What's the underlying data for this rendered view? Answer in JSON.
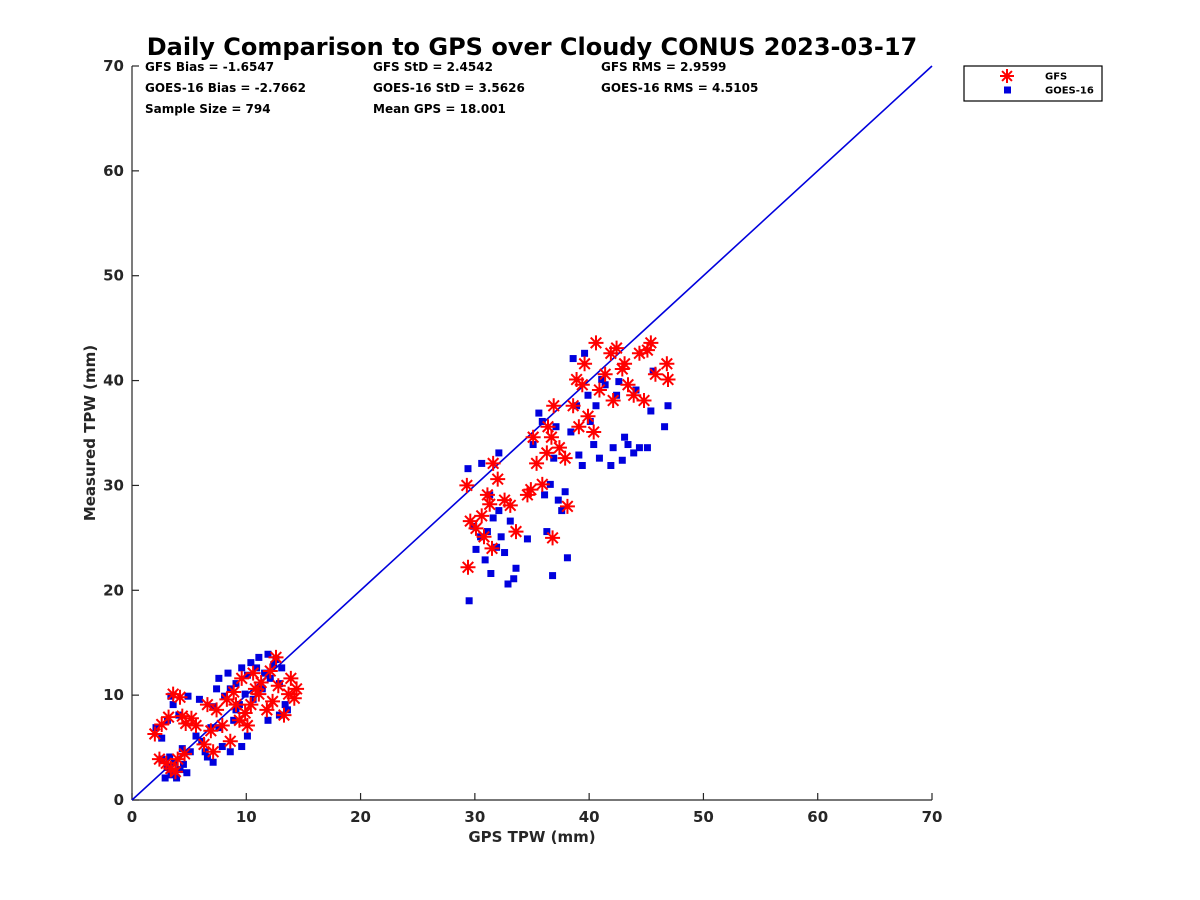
{
  "chart_data": {
    "type": "scatter",
    "title": "Daily Comparison to GPS over Cloudy CONUS 2023-03-17",
    "xlabel": "GPS TPW (mm)",
    "ylabel": "Measured TPW (mm)",
    "xlim": [
      0,
      70
    ],
    "ylim": [
      0,
      70
    ],
    "xticks": [
      "0",
      "10",
      "20",
      "30",
      "40",
      "50",
      "60",
      "70"
    ],
    "yticks": [
      "0",
      "10",
      "20",
      "30",
      "40",
      "50",
      "60",
      "70"
    ],
    "grid": false,
    "legend_position": "outside-top-right",
    "reference_line": {
      "x": [
        0,
        70
      ],
      "y": [
        0,
        70
      ],
      "color": "#0000dd"
    },
    "stats": [
      [
        "GFS Bias = -1.6547",
        "GFS StD = 2.4542",
        "GFS RMS = 2.9599"
      ],
      [
        "GOES-16 Bias = -2.7662",
        "GOES-16 StD = 3.5626",
        "GOES-16 RMS = 4.5105"
      ],
      [
        "Sample Size = 794",
        "Mean GPS = 18.001",
        ""
      ]
    ],
    "series": [
      {
        "name": "GFS",
        "marker": "asterisk",
        "color": "#ff0000",
        "points": [
          [
            2.0,
            6.3
          ],
          [
            2.6,
            7.2
          ],
          [
            3.2,
            7.9
          ],
          [
            3.6,
            10.1
          ],
          [
            4.2,
            9.8
          ],
          [
            4.7,
            7.3
          ],
          [
            5.2,
            7.8
          ],
          [
            4.4,
            8.0
          ],
          [
            2.4,
            3.9
          ],
          [
            3.0,
            3.5
          ],
          [
            3.4,
            3.0
          ],
          [
            4.0,
            3.9
          ],
          [
            4.6,
            4.4
          ],
          [
            3.8,
            2.7
          ],
          [
            6.3,
            5.3
          ],
          [
            6.9,
            6.6
          ],
          [
            7.4,
            8.6
          ],
          [
            7.9,
            7.1
          ],
          [
            8.3,
            9.6
          ],
          [
            8.9,
            10.3
          ],
          [
            9.4,
            7.6
          ],
          [
            9.9,
            8.3
          ],
          [
            10.4,
            9.1
          ],
          [
            10.8,
            10.6
          ],
          [
            11.3,
            11.2
          ],
          [
            11.8,
            8.6
          ],
          [
            12.3,
            9.4
          ],
          [
            12.8,
            10.9
          ],
          [
            13.3,
            8.1
          ],
          [
            13.7,
            10.1
          ],
          [
            14.2,
            9.7
          ],
          [
            12.6,
            13.6
          ],
          [
            13.9,
            11.6
          ],
          [
            12.1,
            12.3
          ],
          [
            10.1,
            7.1
          ],
          [
            8.6,
            5.6
          ],
          [
            7.1,
            4.6
          ],
          [
            9.1,
            9.1
          ],
          [
            11.1,
            10.1
          ],
          [
            6.6,
            9.1
          ],
          [
            10.6,
            12.1
          ],
          [
            14.4,
            10.6
          ],
          [
            5.6,
            7.1
          ],
          [
            9.6,
            11.6
          ],
          [
            29.3,
            30.0
          ],
          [
            29.4,
            22.2
          ],
          [
            29.6,
            26.6
          ],
          [
            30.1,
            25.9
          ],
          [
            30.6,
            27.1
          ],
          [
            31.1,
            29.1
          ],
          [
            31.6,
            32.1
          ],
          [
            32.0,
            30.6
          ],
          [
            31.3,
            28.2
          ],
          [
            30.8,
            25.1
          ],
          [
            31.5,
            24.0
          ],
          [
            32.6,
            28.6
          ],
          [
            33.1,
            28.1
          ],
          [
            33.6,
            25.6
          ],
          [
            34.6,
            29.1
          ],
          [
            34.9,
            29.6
          ],
          [
            35.4,
            32.1
          ],
          [
            35.9,
            30.1
          ],
          [
            36.3,
            33.1
          ],
          [
            36.7,
            34.6
          ],
          [
            36.9,
            37.6
          ],
          [
            36.4,
            35.6
          ],
          [
            37.4,
            33.6
          ],
          [
            37.9,
            32.6
          ],
          [
            38.1,
            28.0
          ],
          [
            36.8,
            25.0
          ],
          [
            35.1,
            34.6
          ],
          [
            38.6,
            37.6
          ],
          [
            38.9,
            40.1
          ],
          [
            39.4,
            39.6
          ],
          [
            39.6,
            41.6
          ],
          [
            39.9,
            36.6
          ],
          [
            40.4,
            35.1
          ],
          [
            40.6,
            43.6
          ],
          [
            40.9,
            39.1
          ],
          [
            41.4,
            40.6
          ],
          [
            41.9,
            42.6
          ],
          [
            42.1,
            38.1
          ],
          [
            42.4,
            43.1
          ],
          [
            42.9,
            41.1
          ],
          [
            43.4,
            39.6
          ],
          [
            43.9,
            38.6
          ],
          [
            44.4,
            42.6
          ],
          [
            44.8,
            38.1
          ],
          [
            45.1,
            42.9
          ],
          [
            45.4,
            43.6
          ],
          [
            45.8,
            40.6
          ],
          [
            46.8,
            41.6
          ],
          [
            46.9,
            40.1
          ],
          [
            43.1,
            41.6
          ],
          [
            39.1,
            35.6
          ]
        ]
      },
      {
        "name": "GOES-16",
        "marker": "square",
        "color": "#0000dd",
        "points": [
          [
            2.1,
            6.9
          ],
          [
            2.6,
            5.9
          ],
          [
            3.1,
            7.6
          ],
          [
            3.6,
            9.1
          ],
          [
            4.1,
            8.1
          ],
          [
            3.4,
            9.9
          ],
          [
            2.9,
            2.1
          ],
          [
            3.1,
            3.1
          ],
          [
            3.4,
            2.4
          ],
          [
            3.7,
            3.6
          ],
          [
            3.9,
            2.1
          ],
          [
            4.2,
            2.9
          ],
          [
            4.5,
            3.4
          ],
          [
            4.8,
            2.6
          ],
          [
            2.6,
            3.9
          ],
          [
            3.3,
            4.1
          ],
          [
            4.4,
            4.9
          ],
          [
            5.1,
            4.6
          ],
          [
            5.6,
            6.1
          ],
          [
            6.1,
            5.6
          ],
          [
            6.6,
            4.1
          ],
          [
            6.9,
            6.9
          ],
          [
            7.1,
            8.9
          ],
          [
            7.4,
            10.6
          ],
          [
            7.6,
            11.6
          ],
          [
            8.1,
            9.9
          ],
          [
            8.4,
            12.1
          ],
          [
            8.6,
            10.6
          ],
          [
            8.9,
            7.6
          ],
          [
            9.1,
            11.1
          ],
          [
            9.4,
            9.1
          ],
          [
            9.6,
            12.6
          ],
          [
            9.9,
            10.1
          ],
          [
            10.1,
            11.9
          ],
          [
            10.4,
            13.1
          ],
          [
            10.6,
            9.6
          ],
          [
            10.9,
            12.6
          ],
          [
            11.1,
            13.6
          ],
          [
            11.4,
            10.6
          ],
          [
            11.6,
            12.1
          ],
          [
            11.9,
            13.9
          ],
          [
            12.1,
            11.6
          ],
          [
            12.4,
            12.9
          ],
          [
            12.6,
            13.4
          ],
          [
            12.9,
            11.1
          ],
          [
            13.1,
            12.6
          ],
          [
            13.4,
            9.1
          ],
          [
            13.6,
            8.6
          ],
          [
            7.9,
            5.1
          ],
          [
            8.6,
            4.6
          ],
          [
            9.6,
            5.1
          ],
          [
            10.1,
            6.1
          ],
          [
            7.1,
            3.6
          ],
          [
            6.4,
            4.6
          ],
          [
            11.9,
            7.6
          ],
          [
            12.9,
            8.1
          ],
          [
            5.9,
            9.6
          ],
          [
            4.9,
            9.9
          ],
          [
            9.1,
            8.6
          ],
          [
            7.6,
            6.9
          ],
          [
            29.4,
            31.6
          ],
          [
            29.5,
            19.0
          ],
          [
            29.9,
            26.1
          ],
          [
            30.1,
            23.9
          ],
          [
            30.5,
            25.1
          ],
          [
            30.6,
            32.1
          ],
          [
            30.9,
            22.9
          ],
          [
            31.1,
            25.6
          ],
          [
            31.3,
            29.1
          ],
          [
            31.4,
            21.6
          ],
          [
            31.6,
            26.9
          ],
          [
            31.9,
            24.1
          ],
          [
            32.1,
            27.6
          ],
          [
            32.1,
            33.1
          ],
          [
            32.3,
            25.1
          ],
          [
            32.6,
            23.6
          ],
          [
            32.9,
            20.6
          ],
          [
            33.1,
            26.6
          ],
          [
            33.4,
            21.1
          ],
          [
            33.6,
            22.1
          ],
          [
            34.6,
            24.9
          ],
          [
            35.1,
            33.9
          ],
          [
            35.6,
            36.9
          ],
          [
            35.9,
            36.1
          ],
          [
            36.1,
            29.1
          ],
          [
            36.3,
            25.6
          ],
          [
            36.6,
            30.1
          ],
          [
            36.8,
            21.4
          ],
          [
            36.9,
            32.6
          ],
          [
            37.1,
            35.6
          ],
          [
            37.3,
            28.6
          ],
          [
            37.6,
            27.6
          ],
          [
            37.9,
            29.4
          ],
          [
            38.1,
            23.1
          ],
          [
            38.4,
            35.1
          ],
          [
            38.6,
            42.1
          ],
          [
            38.9,
            37.6
          ],
          [
            39.1,
            32.9
          ],
          [
            39.4,
            31.9
          ],
          [
            39.6,
            42.6
          ],
          [
            39.9,
            38.6
          ],
          [
            40.1,
            36.1
          ],
          [
            40.4,
            33.9
          ],
          [
            40.6,
            37.6
          ],
          [
            40.9,
            32.6
          ],
          [
            41.1,
            40.1
          ],
          [
            41.4,
            39.6
          ],
          [
            41.9,
            31.9
          ],
          [
            42.1,
            33.6
          ],
          [
            42.4,
            38.6
          ],
          [
            42.6,
            39.9
          ],
          [
            42.9,
            32.4
          ],
          [
            43.1,
            34.6
          ],
          [
            43.4,
            33.9
          ],
          [
            43.9,
            33.1
          ],
          [
            44.4,
            33.6
          ],
          [
            45.1,
            33.6
          ],
          [
            45.4,
            37.1
          ],
          [
            45.6,
            40.9
          ],
          [
            46.6,
            35.6
          ],
          [
            46.9,
            37.6
          ],
          [
            44.1,
            39.1
          ]
        ]
      }
    ]
  }
}
